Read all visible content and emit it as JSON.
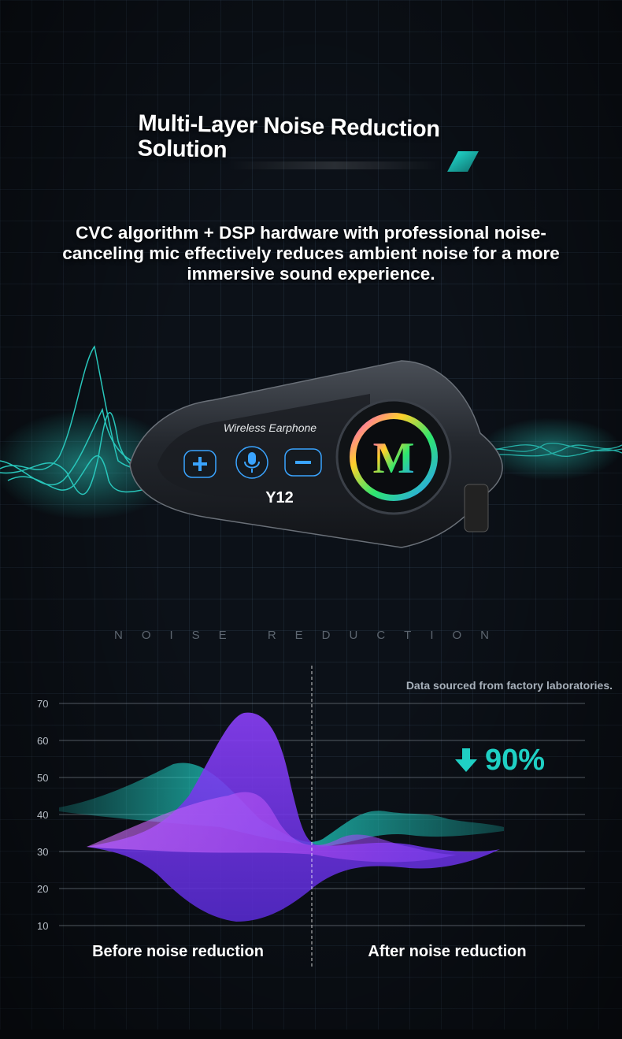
{
  "header": {
    "title": "Multi-Layer Noise Reduction Solution",
    "description": "CVC algorithm + DSP hardware with professional noise-canceling mic effectively reduces ambient noise for a more immersive sound experience."
  },
  "device": {
    "label": "Wireless Earphone",
    "model": "Y12",
    "logo_letter": "M",
    "buttons": [
      "plus-icon",
      "microphone-icon",
      "minus-icon"
    ]
  },
  "section_label": "NOISE REDUCTION",
  "chart_data": {
    "type": "area",
    "title": "",
    "note": "Data sourced from factory laboratories.",
    "y_ticks": [
      70,
      60,
      50,
      40,
      30,
      20,
      10
    ],
    "ylim": [
      10,
      70
    ],
    "grid": true,
    "categories": [
      "Before noise reduction",
      "After noise reduction"
    ],
    "reduction_label": "90%",
    "colors": {
      "teal": "#1fd0c4",
      "purple": "#7b3ff2",
      "violet": "#c05cf0"
    }
  }
}
